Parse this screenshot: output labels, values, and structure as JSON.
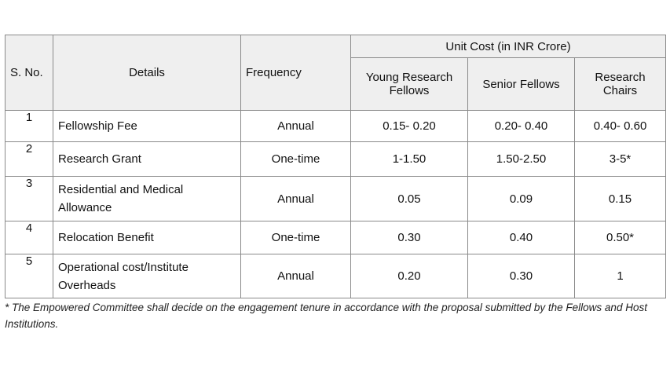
{
  "table": {
    "group_header": "Unit Cost (in INR Crore)",
    "columns": {
      "sno": "S. No.",
      "details": "Details",
      "frequency": "Frequency",
      "young": "Young Research Fellows",
      "senior": "Senior Fellows",
      "chairs": "Research Chairs"
    },
    "rows": [
      {
        "sno": "1",
        "details": "Fellowship Fee",
        "frequency": "Annual",
        "young": "0.15- 0.20",
        "senior": "0.20- 0.40",
        "chairs": "0.40- 0.60"
      },
      {
        "sno": "2",
        "details": "Research Grant",
        "frequency": "One-time",
        "young": "1-1.50",
        "senior": "1.50-2.50",
        "chairs": "3-5*"
      },
      {
        "sno": "3",
        "details": "Residential and Medical Allowance",
        "frequency": "Annual",
        "young": "0.05",
        "senior": "0.09",
        "chairs": "0.15"
      },
      {
        "sno": "4",
        "details": "Relocation Benefit",
        "frequency": "One-time",
        "young": "0.30",
        "senior": "0.40",
        "chairs": "0.50*"
      },
      {
        "sno": "5",
        "details": "Operational cost/Institute Overheads",
        "frequency": "Annual",
        "young": "0.20",
        "senior": "0.30",
        "chairs": "1"
      }
    ]
  },
  "footnote": "* The Empowered Committee shall decide on the engagement tenure in accordance with the proposal submitted by the Fellows and Host Institutions."
}
